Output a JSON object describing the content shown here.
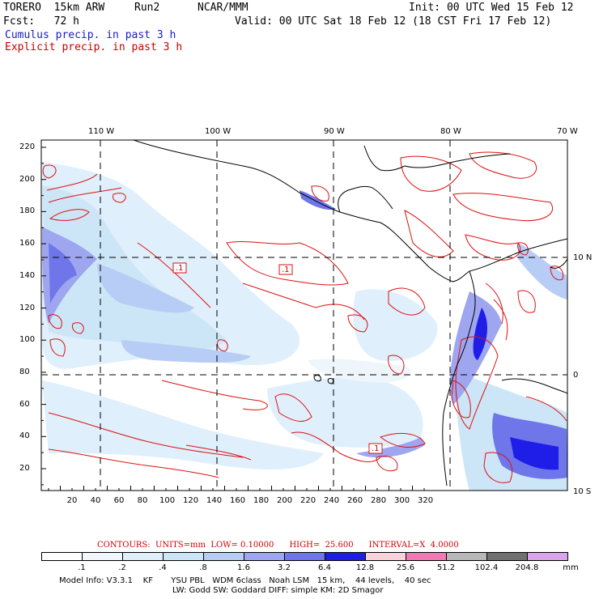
{
  "header": {
    "model": "TORERO  15km ARW",
    "run": "Run2",
    "org": "NCAR/MMM",
    "init": "Init: 00 UTC Wed 15 Feb 12",
    "fcst": "Fcst:   72 h",
    "valid": "Valid: 00 UTC Sat 18 Feb 12 (18 CST Fri 17 Feb 12)",
    "legend_cumulus": "Cumulus precip. in past 3 h",
    "legend_explicit": "Explicit precip. in past 3 h"
  },
  "map": {
    "top_lon_labels": [
      "110 W",
      "100 W",
      "90 W",
      "80 W",
      "70 W"
    ],
    "right_lat_labels": [
      "10 N",
      "0",
      "10 S"
    ],
    "y_ticks": [
      "220",
      "200",
      "180",
      "160",
      "140",
      "120",
      "100",
      "80",
      "60",
      "40",
      "20"
    ],
    "x_ticks": [
      "20",
      "40",
      "60",
      "80",
      "100",
      "120",
      "140",
      "160",
      "180",
      "200",
      "220",
      "240",
      "260",
      "280",
      "300",
      "320"
    ],
    "contour_labels": [
      ".1",
      ".1",
      ".1"
    ],
    "colors": {
      "coast": "#000000",
      "contour": "#dd1111",
      "grid": "#000000"
    }
  },
  "colorbar": {
    "contours_line": "CONTOURS:  UNITS=mm  LOW= 0.10000      HIGH=  25.600      INTERVAL=X  4.0000",
    "labels": [
      ".1",
      ".2",
      ".4",
      ".8",
      "1.6",
      "3.2",
      "6.4",
      "12.8",
      "25.6",
      "51.2",
      "102.4",
      "204.8"
    ],
    "units": "mm",
    "colors": [
      "#ffffff",
      "#f0f6fb",
      "#dfeffc",
      "#cde6f7",
      "#b7cdf5",
      "#9ea6f0",
      "#6f76ea",
      "#1e1ee8",
      "#f9d3dc",
      "#f07bb4",
      "#b8b8b8",
      "#707070",
      "#d9a6ee"
    ]
  },
  "footer": {
    "line1": "Model Info: V3.3.1    KF       YSU PBL   WDM 6class   Noah LSM   15 km,    44 levels,    40 sec",
    "line2": "LW: Godd SW: Goddard DIFF: simple KM: 2D Smagor"
  }
}
